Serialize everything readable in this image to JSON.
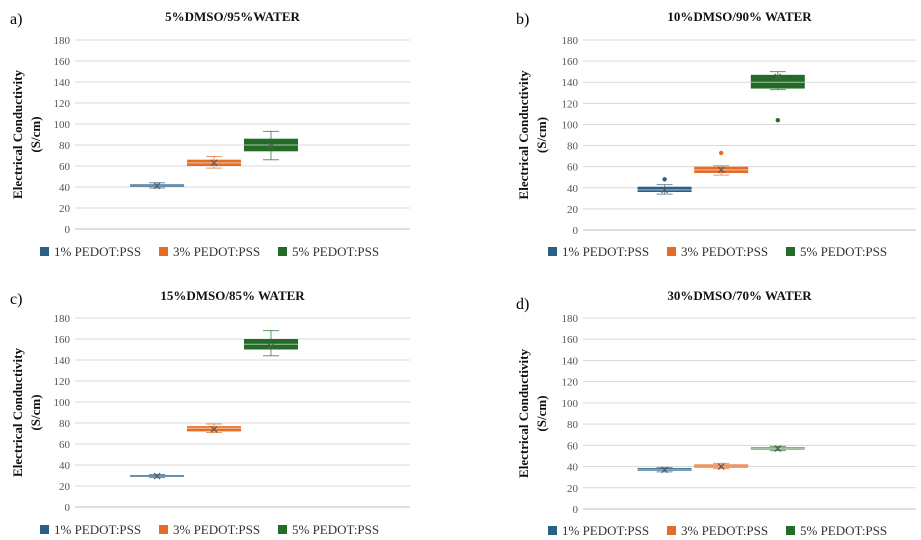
{
  "chart_data": [
    {
      "type": "box",
      "panel": "a)",
      "title": "5%DMSO/95%WATER",
      "ylabel_line1": "Electrical Conductivity",
      "ylabel_line2": "(S/cm)",
      "ylim": [
        0,
        180
      ],
      "yticks": [
        0,
        20,
        40,
        60,
        80,
        100,
        120,
        140,
        160,
        180
      ],
      "grid": true,
      "legend_position": "bottom",
      "series": [
        {
          "name": "1% PEDOT:PSS",
          "min": 39,
          "q1": 40,
          "median": 41,
          "q3": 42.5,
          "max": 44,
          "mean": 41,
          "outliers": []
        },
        {
          "name": "3% PEDOT:PSS",
          "min": 58,
          "q1": 60,
          "median": 63,
          "q3": 66,
          "max": 69,
          "mean": 63,
          "outliers": []
        },
        {
          "name": "5% PEDOT:PSS",
          "min": 66,
          "q1": 74,
          "median": 80,
          "q3": 86,
          "max": 93,
          "mean": 79,
          "outliers": []
        }
      ]
    },
    {
      "type": "box",
      "panel": "b)",
      "title": "10%DMSO/90% WATER",
      "ylabel_line1": "Electrical Conductivity",
      "ylabel_line2": "(S/cm)",
      "ylim": [
        0,
        180
      ],
      "yticks": [
        0,
        20,
        40,
        60,
        80,
        100,
        120,
        140,
        160,
        180
      ],
      "grid": true,
      "legend_position": "bottom",
      "series": [
        {
          "name": "1% PEDOT:PSS",
          "min": 34,
          "q1": 36,
          "median": 38,
          "q3": 41,
          "max": 43,
          "mean": 38,
          "outliers": [
            48
          ]
        },
        {
          "name": "3% PEDOT:PSS",
          "min": 52,
          "q1": 54,
          "median": 57,
          "q3": 60,
          "max": 61,
          "mean": 57,
          "outliers": [
            73
          ]
        },
        {
          "name": "5% PEDOT:PSS",
          "min": 133,
          "q1": 134,
          "median": 140,
          "q3": 147,
          "max": 150,
          "mean": 145,
          "outliers": [
            104
          ]
        }
      ]
    },
    {
      "type": "box",
      "panel": "c)",
      "title": "15%DMSO/85% WATER",
      "ylabel_line1": "Electrical Conductivity",
      "ylabel_line2": "(S/cm)",
      "ylim": [
        0,
        180
      ],
      "yticks": [
        0,
        20,
        40,
        60,
        80,
        100,
        120,
        140,
        160,
        180
      ],
      "grid": true,
      "legend_position": "bottom",
      "series": [
        {
          "name": "1% PEDOT:PSS",
          "min": 28,
          "q1": 29,
          "median": 29.5,
          "q3": 30.5,
          "max": 31,
          "mean": 29.5,
          "outliers": []
        },
        {
          "name": "3% PEDOT:PSS",
          "min": 71,
          "q1": 72,
          "median": 75,
          "q3": 77,
          "max": 79,
          "mean": 74,
          "outliers": []
        },
        {
          "name": "5% PEDOT:PSS",
          "min": 144,
          "q1": 150,
          "median": 155,
          "q3": 160,
          "max": 168,
          "mean": 153,
          "outliers": []
        }
      ]
    },
    {
      "type": "box",
      "panel": "d)",
      "title": "30%DMSO/70% WATER",
      "ylabel_line1": "Electrical Conductivity",
      "ylabel_line2": "(S/cm)",
      "ylim": [
        0,
        180
      ],
      "yticks": [
        0,
        20,
        40,
        60,
        80,
        100,
        120,
        140,
        160,
        180
      ],
      "grid": true,
      "legend_position": "bottom",
      "series": [
        {
          "name": "1% PEDOT:PSS",
          "min": 35,
          "q1": 36,
          "median": 37,
          "q3": 38.5,
          "max": 39,
          "mean": 37,
          "outliers": []
        },
        {
          "name": "3% PEDOT:PSS",
          "min": 38,
          "q1": 39,
          "median": 40.5,
          "q3": 42,
          "max": 43,
          "mean": 40,
          "outliers": []
        },
        {
          "name": "5% PEDOT:PSS",
          "min": 55,
          "q1": 56.5,
          "median": 57,
          "q3": 58,
          "max": 59,
          "mean": 57,
          "outliers": []
        }
      ]
    }
  ],
  "colors": {
    "series": [
      "#2a5f86",
      "#e46c25",
      "#226c28"
    ],
    "grid": "#d9d9d9",
    "axis": "#bfbfbf",
    "whisker_light": "#9ab3c5"
  }
}
